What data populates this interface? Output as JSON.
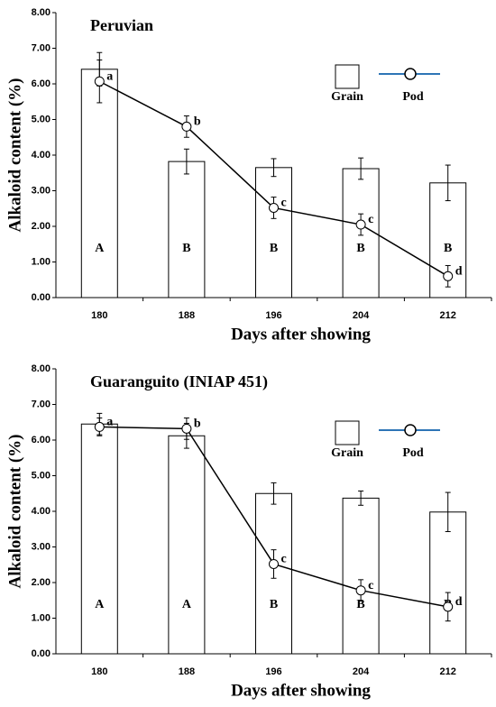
{
  "chart_data": [
    {
      "type": "bar-line",
      "title": "Peruvian",
      "x_label": "Days after showing",
      "y_label": "Alkaloid content (%)",
      "categories": [
        "180",
        "188",
        "196",
        "204",
        "212"
      ],
      "ylim": [
        0,
        8
      ],
      "yticks": [
        {
          "value": 0,
          "label": "0.00"
        },
        {
          "value": 1,
          "label": "1.00"
        },
        {
          "value": 2,
          "label": "2.00"
        },
        {
          "value": 3,
          "label": "3.00"
        },
        {
          "value": 4,
          "label": "4.00"
        },
        {
          "value": 5,
          "label": "5.00"
        },
        {
          "value": 6,
          "label": "6.00"
        },
        {
          "value": 7,
          "label": "7.00"
        },
        {
          "value": 8,
          "label": "8.00"
        }
      ],
      "series": [
        {
          "name": "Grain",
          "kind": "bar",
          "color": "#ffffff",
          "values": [
            6.41,
            3.82,
            3.65,
            3.62,
            3.22
          ],
          "errors": [
            0.47,
            0.35,
            0.25,
            0.3,
            0.5
          ],
          "letters": [
            "A",
            "B",
            "B",
            "B",
            "B"
          ]
        },
        {
          "name": "Pod",
          "kind": "line",
          "color": "#2e75b6",
          "values": [
            6.07,
            4.8,
            2.52,
            2.05,
            0.6
          ],
          "errors": [
            0.6,
            0.3,
            0.3,
            0.3,
            0.3
          ],
          "letters": [
            "a",
            "b",
            "c",
            "c",
            "d"
          ]
        }
      ]
    },
    {
      "type": "bar-line",
      "title": "Guaranguito (INIAP 451)",
      "x_label": "Days after showing",
      "y_label": "Alkaloid content (%)",
      "categories": [
        "180",
        "188",
        "196",
        "204",
        "212"
      ],
      "ylim": [
        0,
        8
      ],
      "yticks": [
        {
          "value": 0,
          "label": "0.00"
        },
        {
          "value": 1,
          "label": "1.00"
        },
        {
          "value": 2,
          "label": "2.00"
        },
        {
          "value": 3,
          "label": "3.00"
        },
        {
          "value": 4,
          "label": "4.00"
        },
        {
          "value": 5,
          "label": "5.00"
        },
        {
          "value": 6,
          "label": "6.00"
        },
        {
          "value": 7,
          "label": "7.00"
        },
        {
          "value": 8,
          "label": "8.00"
        }
      ],
      "series": [
        {
          "name": "Grain",
          "kind": "bar",
          "color": "#ffffff",
          "values": [
            6.45,
            6.12,
            4.5,
            4.37,
            3.98
          ],
          "errors": [
            0.3,
            0.35,
            0.3,
            0.2,
            0.55
          ],
          "letters": [
            "A",
            "A",
            "B",
            "B",
            "B"
          ]
        },
        {
          "name": "Pod",
          "kind": "line",
          "color": "#2e75b6",
          "values": [
            6.37,
            6.32,
            2.52,
            1.78,
            1.32
          ],
          "errors": [
            0.25,
            0.3,
            0.4,
            0.3,
            0.4
          ],
          "letters": [
            "a",
            "b",
            "c",
            "c",
            "d"
          ]
        }
      ]
    }
  ]
}
